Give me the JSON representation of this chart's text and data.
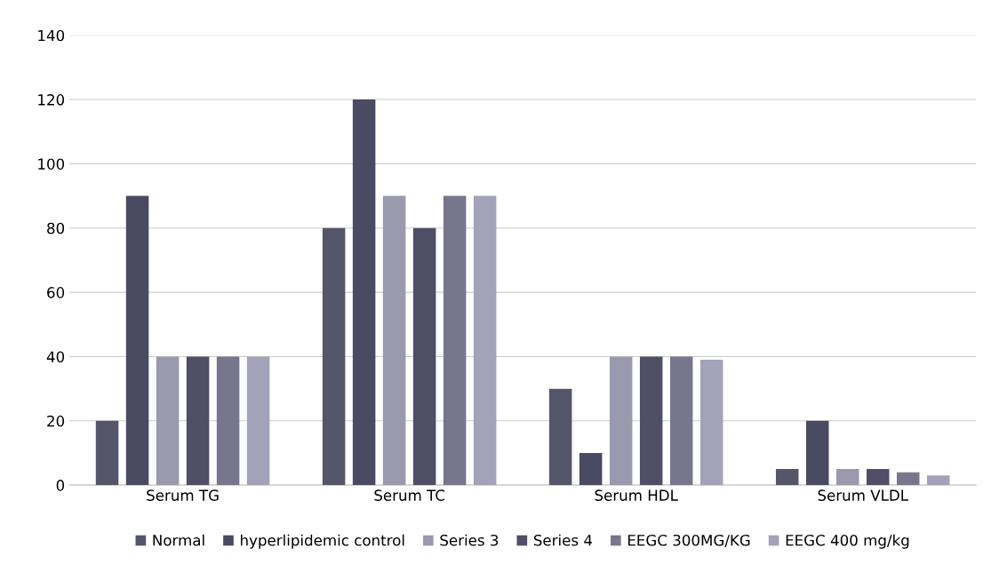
{
  "chart_data": {
    "type": "bar",
    "categories": [
      "Serum TG",
      "Serum TC",
      "Serum HDL",
      "Serum VLDL"
    ],
    "series": [
      {
        "name": "Normal",
        "color": "#55556a",
        "values": [
          20,
          80,
          30,
          5
        ]
      },
      {
        "name": "hyperlipidemic control",
        "color": "#4a4a62",
        "values": [
          90,
          120,
          10,
          20
        ]
      },
      {
        "name": "Series 3",
        "color": "#9a99ad",
        "values": [
          40,
          90,
          40,
          5
        ]
      },
      {
        "name": "Series 4",
        "color": "#4f4e66",
        "values": [
          40,
          80,
          40,
          5
        ]
      },
      {
        "name": "EEGC 300MG/KG",
        "color": "#77768c",
        "values": [
          40,
          90,
          40,
          4
        ]
      },
      {
        "name": "EEGC 400 mg/kg",
        "color": "#a3a2b8",
        "values": [
          40,
          90,
          39,
          3
        ]
      }
    ],
    "ylim": [
      0,
      140
    ],
    "yticks": [
      0,
      20,
      40,
      60,
      80,
      100,
      120,
      140
    ],
    "grid": "y",
    "legend": "bottom"
  }
}
